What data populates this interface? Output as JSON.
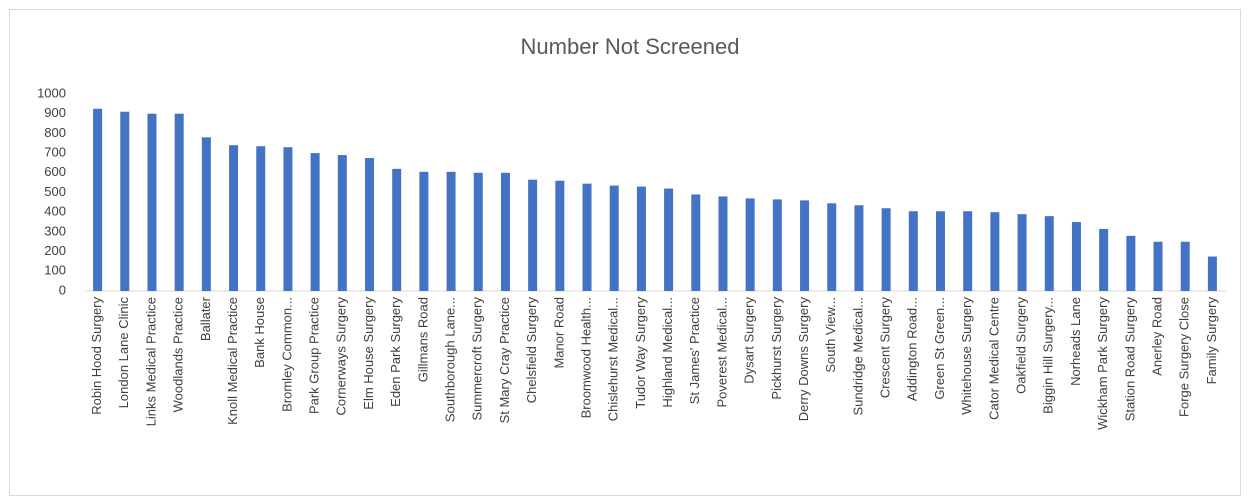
{
  "chart_data": {
    "type": "bar",
    "title": "Number Not Screened",
    "categories": [
      "Robin Hood Surgery",
      "London Lane Clinic",
      "Links Medical Practice",
      "Woodlands Practice",
      "Ballater",
      "Knoll Medical Practice",
      "Bank House",
      "Bromley Common...",
      "Park Group Practice",
      "Cornerways Surgery",
      "Elm House Surgery",
      "Eden Park Surgery",
      "Gillmans Road",
      "Southborough Lane...",
      "Summercroft Surgery",
      "St Mary Cray Practice",
      "Chelsfield Surgery",
      "Manor Road",
      "Broomwood Health...",
      "Chislehurst Medical...",
      "Tudor Way Surgery",
      "Highland Medical...",
      "St James' Practice",
      "Poverest Medical...",
      "Dysart Surgery",
      "Pickhurst Surgery",
      "Derry Downs Surgery",
      "South View...",
      "Sundridge Medical...",
      "Crescent Surgery",
      "Addington Road...",
      "Green St Green...",
      "Whitehouse Surgery",
      "Cator Medical Centre",
      "Oakfield Surgery",
      "Biggin Hill Surgery...",
      "Norheads Lane",
      "Wickham Park Surgery",
      "Station Road Surgery",
      "Anerley Road",
      "Forge Surgery Close",
      "Family Surgery"
    ],
    "values": [
      925,
      910,
      900,
      900,
      780,
      740,
      735,
      730,
      700,
      690,
      675,
      620,
      605,
      605,
      600,
      600,
      565,
      560,
      545,
      535,
      530,
      520,
      490,
      480,
      470,
      465,
      460,
      445,
      435,
      420,
      405,
      405,
      405,
      400,
      390,
      380,
      350,
      315,
      280,
      250,
      250,
      175
    ],
    "color": "#4472c4",
    "ylim": [
      0,
      1000
    ],
    "yticks": [
      0,
      100,
      200,
      300,
      400,
      500,
      600,
      700,
      800,
      900,
      1000
    ],
    "grid": false
  }
}
